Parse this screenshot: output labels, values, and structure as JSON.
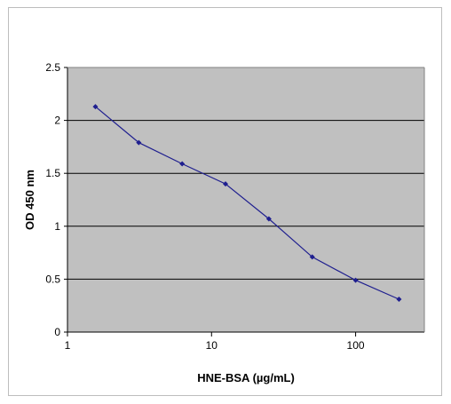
{
  "chart_data": {
    "type": "line",
    "title": "",
    "xlabel": "HNE-BSA (µg/mL)",
    "ylabel": "OD 450 nm",
    "x_scale": "log",
    "xlim": [
      1,
      300
    ],
    "ylim": [
      0,
      2.5
    ],
    "x_ticks": [
      1,
      10,
      100
    ],
    "y_ticks": [
      0,
      0.5,
      1,
      1.5,
      2,
      2.5
    ],
    "grid": "horizontal",
    "legend": "none",
    "colors": {
      "plot_bg": "#c0c0c0",
      "series": "#1f1f8f",
      "grid": "#000000"
    },
    "series": [
      {
        "x": [
          1.5625,
          3.125,
          6.25,
          12.5,
          25,
          50,
          100,
          200
        ],
        "y": [
          2.13,
          1.79,
          1.59,
          1.4,
          1.07,
          0.71,
          0.49,
          0.31
        ]
      }
    ]
  }
}
